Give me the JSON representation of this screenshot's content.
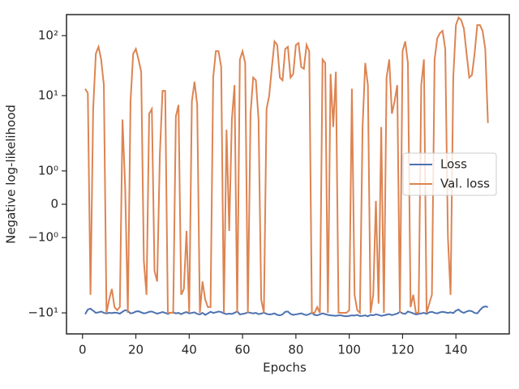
{
  "chart_data": {
    "type": "line",
    "xlabel": "Epochs",
    "ylabel": "Negative log-likelihood",
    "yscale": "symlog",
    "linthresh": 2,
    "linscale": 1,
    "xlim": [
      -6,
      160
    ],
    "xticks": [
      0,
      20,
      40,
      60,
      80,
      100,
      120,
      140
    ],
    "ylim": [
      -22.4,
      224
    ],
    "yticks": [
      {
        "value": -10,
        "label": "−10¹"
      },
      {
        "value": -1,
        "label": "−10⁰"
      },
      0,
      {
        "value": 1,
        "label": "10⁰"
      },
      {
        "value": 10,
        "label": "10¹"
      },
      {
        "value": 100,
        "label": "10²"
      }
    ],
    "legend": "center right",
    "x": [
      1,
      2,
      3,
      4,
      5,
      6,
      7,
      8,
      9,
      10,
      11,
      12,
      13,
      14,
      15,
      16,
      17,
      18,
      19,
      20,
      21,
      22,
      23,
      24,
      25,
      26,
      27,
      28,
      29,
      30,
      31,
      32,
      33,
      34,
      35,
      36,
      37,
      38,
      39,
      40,
      41,
      42,
      43,
      44,
      45,
      46,
      47,
      48,
      49,
      50,
      51,
      52,
      53,
      54,
      55,
      56,
      57,
      58,
      59,
      60,
      61,
      62,
      63,
      64,
      65,
      66,
      67,
      68,
      69,
      70,
      71,
      72,
      73,
      74,
      75,
      76,
      77,
      78,
      79,
      80,
      81,
      82,
      83,
      84,
      85,
      86,
      87,
      88,
      89,
      90,
      91,
      92,
      93,
      94,
      95,
      96,
      97,
      98,
      99,
      100,
      101,
      102,
      103,
      104,
      105,
      106,
      107,
      108,
      109,
      110,
      111,
      112,
      113,
      114,
      115,
      116,
      117,
      118,
      119,
      120,
      121,
      122,
      123,
      124,
      125,
      126,
      127,
      128,
      129,
      130,
      131,
      132,
      133,
      134,
      135,
      136,
      137,
      138,
      139,
      140,
      141,
      142,
      143,
      144,
      145,
      146,
      147,
      148,
      149,
      150,
      151,
      152
    ],
    "series": [
      {
        "name": "Loss",
        "color": "#4c72b0",
        "values": [
          -10.5,
          -8.8,
          -8.5,
          -9.2,
          -10,
          -9.8,
          -9.5,
          -10,
          -10.2,
          -10,
          -10.1,
          -9.9,
          -10,
          -10.3,
          -9.6,
          -9.0,
          -9.3,
          -10.2,
          -10,
          -9.5,
          -9.4,
          -9.8,
          -10.2,
          -10,
          -9.6,
          -9.5,
          -9.9,
          -10.3,
          -10,
          -9.7,
          -10,
          -10.4,
          -10,
          -9.8,
          -10.2,
          -10,
          -10.5,
          -10,
          -9.7,
          -10.2,
          -10,
          -9.8,
          -10.4,
          -10.6,
          -10,
          -10.8,
          -10.2,
          -9.6,
          -10,
          -9.8,
          -9.5,
          -9.7,
          -10.2,
          -10.5,
          -10.3,
          -10.4,
          -10,
          -9.4,
          -10.6,
          -10.4,
          -10.2,
          -9.8,
          -10,
          -10.2,
          -10,
          -10.5,
          -10.3,
          -9.9,
          -10.4,
          -10.6,
          -10.5,
          -10.2,
          -10.8,
          -11,
          -10.6,
          -9.6,
          -9.5,
          -10.4,
          -10.8,
          -10.6,
          -10.4,
          -10.2,
          -10.6,
          -10.9,
          -10.5,
          -10,
          -10.8,
          -11,
          -10.6,
          -10.2,
          -10.5,
          -10.8,
          -11,
          -11.1,
          -11.2,
          -11,
          -11,
          -11.3,
          -11.4,
          -11.2,
          -11,
          -11.1,
          -10.8,
          -11.3,
          -11.2,
          -11,
          -11.4,
          -10.8,
          -11,
          -10.6,
          -10.8,
          -11.2,
          -11,
          -10.7,
          -10.5,
          -10.9,
          -10.6,
          -10.3,
          -9.6,
          -10.2,
          -10.4,
          -9.5,
          -9.8,
          -10.2,
          -10.6,
          -10.4,
          -10.2,
          -10,
          -10.4,
          -9.8,
          -9.6,
          -10,
          -10.2,
          -9.8,
          -9.6,
          -9.8,
          -10,
          -9.8,
          -10.1,
          -9.2,
          -8.8,
          -9.6,
          -10,
          -9.5,
          -9.2,
          -9.4,
          -10,
          -10.2,
          -9.0,
          -8.1,
          -7.8,
          -8.0
        ]
      },
      {
        "name": "Val. loss",
        "color": "#dd8452",
        "values": [
          13,
          11,
          -5,
          6,
          50,
          65,
          40,
          15,
          -10,
          -6,
          -4,
          -8,
          -9,
          -8,
          4,
          0.5,
          -10,
          8,
          50,
          60,
          40,
          25,
          -1.7,
          -5,
          5,
          6,
          -2,
          -3,
          1.5,
          12,
          12,
          -10,
          -10,
          -10,
          4.5,
          7,
          -5,
          -4,
          -0.8,
          -10,
          8,
          17,
          7,
          -10,
          -3,
          -6,
          -8,
          -8,
          20,
          55,
          55,
          30,
          -10,
          2.7,
          -0.8,
          4,
          15,
          -10,
          40,
          55,
          35,
          -10,
          5,
          20,
          18,
          4,
          -6,
          -10,
          6,
          10,
          30,
          80,
          70,
          20,
          18,
          60,
          65,
          20,
          23,
          70,
          75,
          30,
          28,
          70,
          55,
          -10,
          -10,
          -8,
          -10,
          40,
          35,
          -10,
          23,
          3,
          25,
          -10,
          -10,
          -10,
          -10,
          -9,
          13,
          -5,
          -9,
          -10,
          3,
          35,
          15,
          -10,
          -5,
          0.1,
          -7,
          3,
          -10,
          20,
          40,
          5,
          8,
          15,
          -10,
          55,
          80,
          35,
          -8,
          -5,
          -10,
          -10,
          15,
          40,
          -10,
          -7,
          -5,
          40,
          90,
          110,
          120,
          60,
          -1,
          -5,
          20,
          150,
          200,
          180,
          130,
          50,
          20,
          22,
          50,
          150,
          150,
          120,
          60,
          3.5
        ]
      }
    ]
  }
}
